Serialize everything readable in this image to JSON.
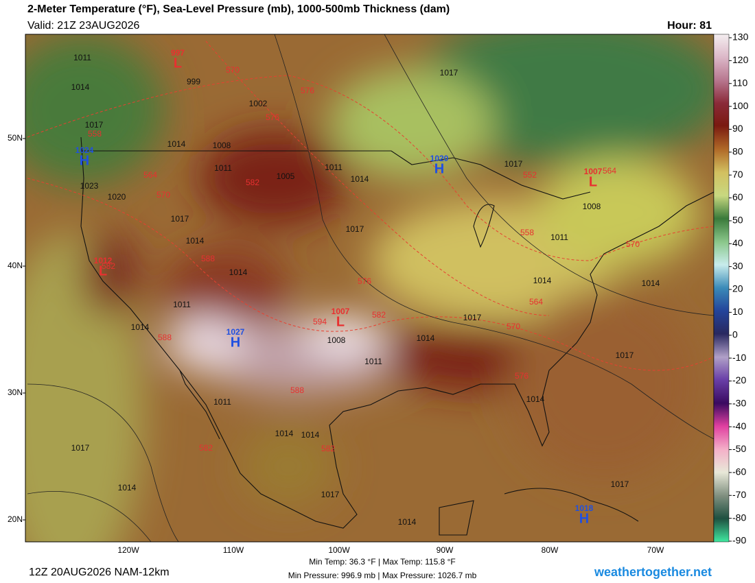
{
  "header": {
    "title": "2-Meter Temperature (°F), Sea-Level Pressure (mb), 1000-500mb Thickness (dam)",
    "valid": "Valid: 21Z 23AUG2026",
    "hour": "Hour: 81"
  },
  "map": {
    "lat_labels": [
      "50N",
      "40N",
      "30N",
      "20N"
    ],
    "lon_labels": [
      "120W",
      "110W",
      "100W",
      "90W",
      "80W",
      "70W"
    ],
    "isobar_labels": [
      "1011",
      "1014",
      "1017",
      "1014",
      "1008",
      "1011",
      "1005",
      "1011",
      "1014",
      "1017",
      "999",
      "1002",
      "1017",
      "1008",
      "1011",
      "1014",
      "1017",
      "1014",
      "1014",
      "1017",
      "1017",
      "1014",
      "1017",
      "1011",
      "1008",
      "1011",
      "1011",
      "1014",
      "1014",
      "1017",
      "1014",
      "1014",
      "1017",
      "1014",
      "1017",
      "1023",
      "1020",
      "1014",
      "1014"
    ],
    "thickness_labels": [
      "570",
      "576",
      "576",
      "558",
      "564",
      "570",
      "582",
      "552",
      "564",
      "558",
      "564",
      "570",
      "576",
      "570",
      "576",
      "582",
      "588",
      "588",
      "594",
      "582",
      "588",
      "582",
      "582"
    ],
    "centers": [
      {
        "letter": "L",
        "value": "997"
      },
      {
        "letter": "H",
        "value": "1024"
      },
      {
        "letter": "H",
        "value": "1020"
      },
      {
        "letter": "L",
        "value": "1007"
      },
      {
        "letter": "L",
        "value": "1012"
      },
      {
        "letter": "L",
        "value": "1007"
      },
      {
        "letter": "H",
        "value": "1027"
      },
      {
        "letter": "H",
        "value": "1018"
      }
    ]
  },
  "colorbar": {
    "ticks": [
      130,
      120,
      110,
      100,
      90,
      80,
      70,
      60,
      50,
      40,
      30,
      20,
      10,
      0,
      -10,
      -20,
      -30,
      -40,
      -50,
      -60,
      -70,
      -80,
      -90
    ]
  },
  "footer": {
    "run": "12Z 20AUG2026 NAM-12km",
    "temp_range": "Min Temp: 36.3 °F | Max Temp: 115.8 °F",
    "pressure_range": "Min Pressure: 996.9 mb | Max Pressure: 1026.7 mb",
    "site": "weathertogether.net"
  }
}
